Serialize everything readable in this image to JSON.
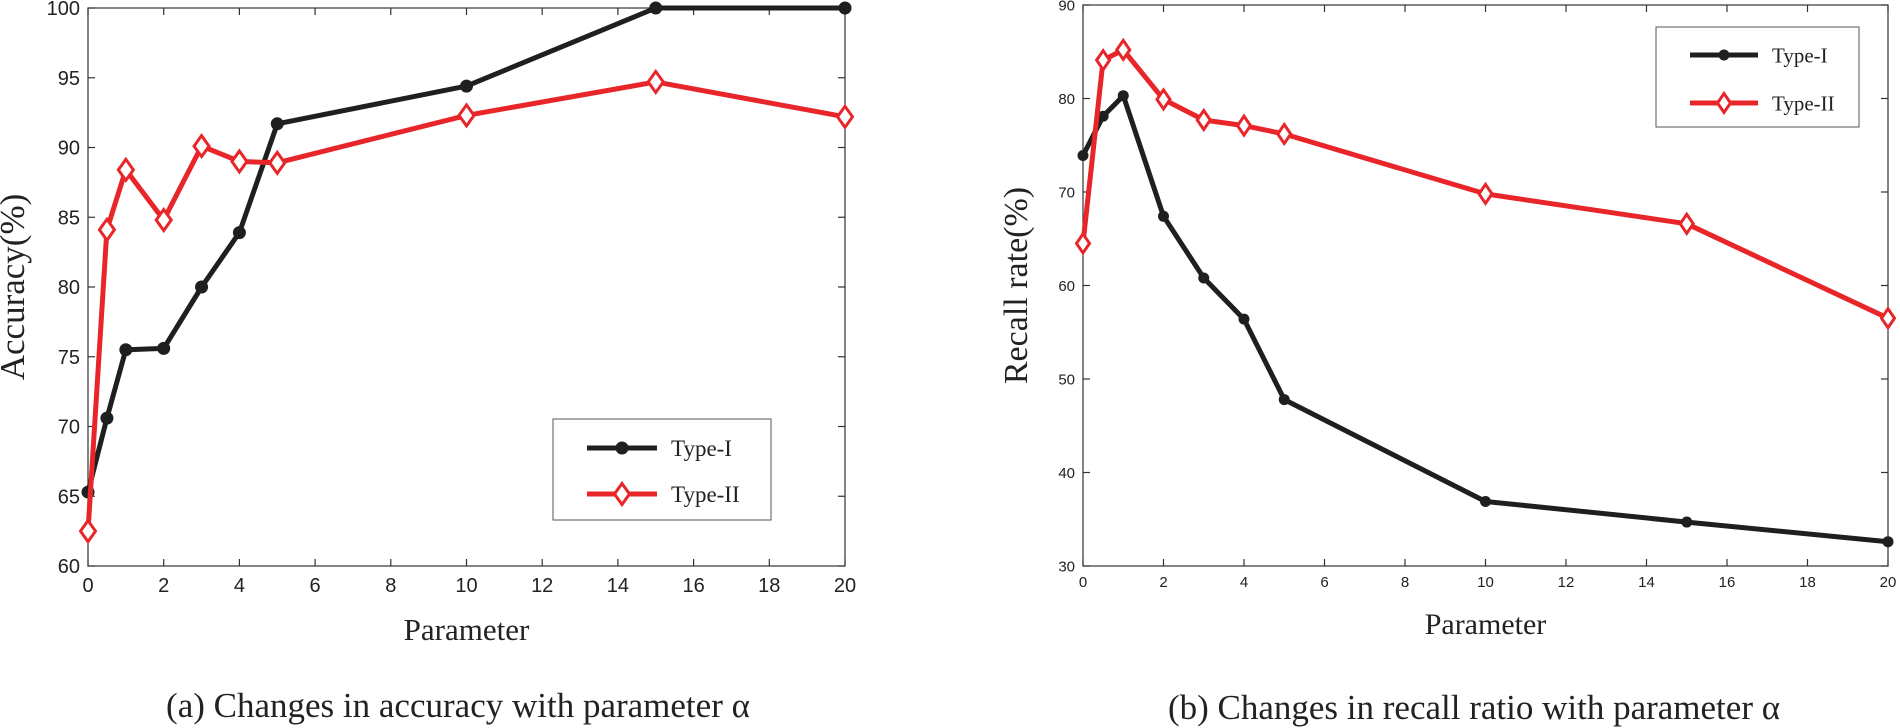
{
  "colors": {
    "type1": "#1f1f1f",
    "type2": "#e8262a"
  },
  "chart_data": [
    {
      "type": "line",
      "ylabel": "Accuracy(%)",
      "xlabel": "Parameter",
      "caption": "(a) Changes in accuracy with parameter α",
      "xlim": [
        0,
        20
      ],
      "ylim": [
        60,
        100
      ],
      "xticks": [
        0,
        2,
        4,
        6,
        8,
        10,
        12,
        14,
        16,
        18,
        20
      ],
      "yticks": [
        60,
        65,
        70,
        75,
        80,
        85,
        90,
        95,
        100
      ],
      "legend_position": "bottom-right",
      "series": [
        {
          "name": "Type-I",
          "marker": "circle",
          "x": [
            0,
            0.5,
            1,
            2,
            3,
            4,
            5,
            10,
            15,
            20
          ],
          "y": [
            65.3,
            70.6,
            75.5,
            75.6,
            80.0,
            83.9,
            91.7,
            94.4,
            100.0,
            100.0
          ]
        },
        {
          "name": "Type-II",
          "marker": "diamond",
          "x": [
            0,
            0.5,
            1,
            2,
            3,
            4,
            5,
            10,
            15,
            20
          ],
          "y": [
            62.5,
            84.1,
            88.4,
            84.8,
            90.1,
            89.0,
            88.9,
            92.3,
            94.7,
            92.2
          ]
        }
      ]
    },
    {
      "type": "line",
      "ylabel": "Recall rate(%)",
      "xlabel": "Parameter",
      "caption": "(b) Changes in recall ratio with parameter α",
      "xlim": [
        0,
        20
      ],
      "ylim": [
        30,
        90
      ],
      "xticks": [
        0,
        2,
        4,
        6,
        8,
        10,
        12,
        14,
        16,
        18,
        20
      ],
      "yticks": [
        30,
        40,
        50,
        60,
        70,
        80,
        90
      ],
      "legend_position": "top-right",
      "series": [
        {
          "name": "Type-I",
          "marker": "circle",
          "x": [
            0,
            0.5,
            1,
            2,
            3,
            4,
            5,
            10,
            15,
            20
          ],
          "y": [
            73.9,
            78.1,
            80.3,
            67.4,
            60.8,
            56.4,
            47.8,
            36.9,
            34.7,
            32.6
          ]
        },
        {
          "name": "Type-II",
          "marker": "diamond",
          "x": [
            0,
            0.5,
            1,
            2,
            3,
            4,
            5,
            10,
            15,
            20
          ],
          "y": [
            64.5,
            84.1,
            85.2,
            79.9,
            77.7,
            77.1,
            76.2,
            69.8,
            66.6,
            56.5
          ]
        }
      ]
    }
  ]
}
